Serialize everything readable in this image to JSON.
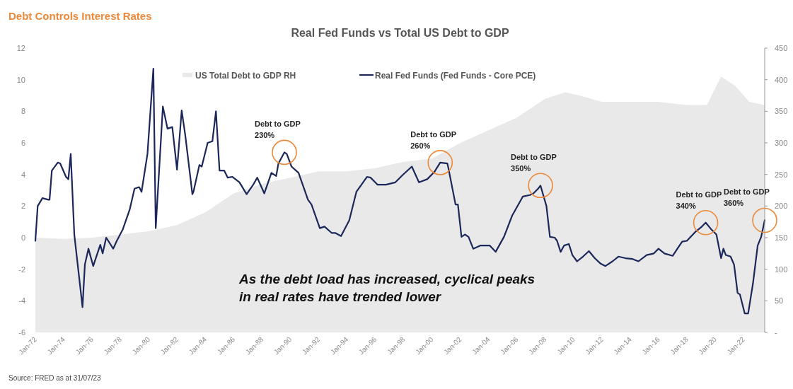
{
  "chart_data": {
    "type": "line",
    "title": "Debt Controls Interest Rates",
    "subtitle": "Real Fed Funds vs Total US Debt to GDP",
    "xlim": [
      "1972-01",
      "2023-07"
    ],
    "xticks": [
      {
        "value": "1972-01",
        "label": "Jan-72"
      },
      {
        "value": "1974-01",
        "label": "Jan-74"
      },
      {
        "value": "1976-01",
        "label": "Jan-76"
      },
      {
        "value": "1978-01",
        "label": "Jan-78"
      },
      {
        "value": "1980-01",
        "label": "Jan-80"
      },
      {
        "value": "1982-01",
        "label": "Jan-82"
      },
      {
        "value": "1984-01",
        "label": "Jan-84"
      },
      {
        "value": "1986-01",
        "label": "Jan-86"
      },
      {
        "value": "1988-01",
        "label": "Jan-88"
      },
      {
        "value": "1990-01",
        "label": "Jan-90"
      },
      {
        "value": "1992-01",
        "label": "Jan-92"
      },
      {
        "value": "1994-01",
        "label": "Jan-94"
      },
      {
        "value": "1996-01",
        "label": "Jan-96"
      },
      {
        "value": "1998-01",
        "label": "Jan-98"
      },
      {
        "value": "2000-01",
        "label": "Jan-00"
      },
      {
        "value": "2002-01",
        "label": "Jan-02"
      },
      {
        "value": "2004-01",
        "label": "Jan-04"
      },
      {
        "value": "2006-01",
        "label": "Jan-06"
      },
      {
        "value": "2008-01",
        "label": "Jan-08"
      },
      {
        "value": "2010-01",
        "label": "Jan-10"
      },
      {
        "value": "2012-01",
        "label": "Jan-12"
      },
      {
        "value": "2014-01",
        "label": "Jan-14"
      },
      {
        "value": "2016-01",
        "label": "Jan-16"
      },
      {
        "value": "2018-01",
        "label": "Jan-18"
      },
      {
        "value": "2020-01",
        "label": "Jan-20"
      },
      {
        "value": "2022-01",
        "label": "Jan-22"
      }
    ],
    "ylim": [
      -6,
      12
    ],
    "yticks": [
      -6,
      -4,
      -2,
      0,
      2,
      4,
      6,
      8,
      10,
      12
    ],
    "y2lim": [
      0,
      450
    ],
    "y2ticks": [
      {
        "value": 0,
        "label": "-"
      },
      50,
      100,
      150,
      200,
      250,
      300,
      350,
      400,
      450
    ],
    "legend": "top",
    "series": [
      {
        "name": "US Total Debt to GDP RH",
        "type": "area",
        "axis": "y2",
        "color": "#e9e9e9",
        "x": [
          "1972-01",
          "1974-01",
          "1976-01",
          "1978-01",
          "1980-01",
          "1982-01",
          "1984-01",
          "1986-01",
          "1988-01",
          "1990-01",
          "1992-01",
          "1994-01",
          "1996-01",
          "1998-01",
          "2000-01",
          "2002-01",
          "2004-01",
          "2006-01",
          "2008-01",
          "2009-06",
          "2010-06",
          "2012-01",
          "2014-01",
          "2016-01",
          "2018-01",
          "2019-06",
          "2020-06",
          "2021-06",
          "2022-06",
          "2023-07"
        ],
        "values": [
          150,
          148,
          150,
          155,
          160,
          170,
          190,
          220,
          235,
          245,
          255,
          255,
          260,
          270,
          275,
          300,
          320,
          340,
          370,
          380,
          375,
          365,
          365,
          365,
          360,
          360,
          405,
          390,
          365,
          360
        ]
      },
      {
        "name": "Real Fed Funds (Fed Funds - Core PCE)",
        "color": "#1c2859",
        "x": [
          "1972-01",
          "1972-03",
          "1972-07",
          "1972-12",
          "1973-01",
          "1973-03",
          "1973-08",
          "1973-10",
          "1974-03",
          "1974-05",
          "1974-07",
          "1974-10",
          "1975-05",
          "1975-07",
          "1975-10",
          "1976-02",
          "1976-08",
          "1976-10",
          "1977-01",
          "1977-07",
          "1977-10",
          "1978-03",
          "1978-09",
          "1979-01",
          "1979-05",
          "1979-07",
          "1979-12",
          "1980-05",
          "1980-07",
          "1981-01",
          "1981-05",
          "1981-09",
          "1982-01",
          "1982-05",
          "1982-08",
          "1983-02",
          "1983-03",
          "1983-08",
          "1983-10",
          "1984-03",
          "1984-07",
          "1984-10",
          "1985-01",
          "1985-05",
          "1985-08",
          "1985-12",
          "1986-06",
          "1986-12",
          "1987-06",
          "1987-09",
          "1988-03",
          "1988-09",
          "1989-01",
          "1989-03",
          "1989-08",
          "1989-10",
          "1990-02",
          "1990-08",
          "1991-04",
          "1991-07",
          "1992-02",
          "1992-06",
          "1992-12",
          "1993-03",
          "1993-08",
          "1994-03",
          "1994-09",
          "1995-06",
          "1995-09",
          "1996-03",
          "1996-10",
          "1997-06",
          "1997-12",
          "1998-08",
          "1999-02",
          "1999-09",
          "2000-03",
          "2000-08",
          "2001-02",
          "2001-03",
          "2001-09",
          "2001-11",
          "2002-02",
          "2002-05",
          "2002-08",
          "2002-12",
          "2003-06",
          "2004-02",
          "2004-07",
          "2005-02",
          "2005-09",
          "2006-06",
          "2006-12",
          "2007-03",
          "2007-07",
          "2007-09",
          "2008-02",
          "2008-05",
          "2008-09",
          "2008-11",
          "2009-02",
          "2009-05",
          "2009-09",
          "2009-12",
          "2010-04",
          "2010-09",
          "2011-02",
          "2011-07",
          "2011-12",
          "2012-04",
          "2012-10",
          "2013-03",
          "2013-09",
          "2014-03",
          "2014-08",
          "2015-03",
          "2015-09",
          "2016-01",
          "2016-06",
          "2017-01",
          "2017-05",
          "2017-09",
          "2018-01",
          "2018-08",
          "2019-01",
          "2019-05",
          "2019-10",
          "2020-02",
          "2020-06",
          "2020-08",
          "2020-10",
          "2021-02",
          "2021-05",
          "2021-08",
          "2021-10",
          "2022-02",
          "2022-05",
          "2022-09",
          "2023-01",
          "2023-04",
          "2023-07"
        ],
        "values": [
          -0.2,
          2.0,
          2.5,
          2.4,
          2.4,
          4.25,
          4.75,
          4.7,
          3.85,
          3.7,
          5.3,
          0.2,
          -4.4,
          -1.7,
          -0.7,
          -1.8,
          -0.45,
          -1.0,
          0.0,
          -0.7,
          -0.2,
          0.5,
          1.8,
          3.1,
          3.2,
          2.9,
          5.3,
          10.7,
          0.6,
          8.3,
          6.9,
          7.0,
          4.3,
          8.05,
          6.5,
          2.75,
          2.9,
          4.6,
          4.5,
          6.0,
          6.1,
          8.0,
          4.25,
          4.25,
          3.8,
          3.85,
          3.5,
          2.75,
          3.4,
          3.8,
          2.8,
          4.1,
          3.9,
          4.7,
          5.4,
          5.3,
          4.5,
          4.1,
          2.4,
          2.1,
          0.6,
          0.7,
          0.3,
          0.3,
          0.1,
          1.1,
          2.9,
          3.85,
          3.8,
          3.35,
          3.35,
          3.5,
          3.95,
          4.5,
          3.5,
          3.7,
          4.15,
          4.75,
          4.7,
          4.4,
          2.1,
          2.1,
          0.05,
          0.2,
          0.05,
          -0.7,
          -0.5,
          -0.5,
          -0.9,
          0.05,
          1.4,
          2.6,
          2.7,
          2.8,
          3.1,
          3.3,
          2.0,
          0.05,
          0.0,
          -0.2,
          -0.9,
          -0.5,
          -0.4,
          -1.1,
          -1.5,
          -1.2,
          -0.85,
          -1.3,
          -1.65,
          -1.8,
          -1.5,
          -1.2,
          -1.3,
          -1.35,
          -1.5,
          -1.1,
          -1.0,
          -0.7,
          -1.0,
          -1.15,
          -0.7,
          -0.25,
          -0.2,
          0.35,
          0.65,
          0.95,
          0.5,
          0.2,
          -1.3,
          -0.7,
          -1.1,
          -1.2,
          -1.7,
          -3.5,
          -3.6,
          -4.8,
          -4.8,
          -2.9,
          -0.5,
          0.05,
          1.1
        ]
      }
    ],
    "annotations": [
      {
        "text": "Debt to GDP\n230%",
        "x": "1989-08",
        "y": 5.4
      },
      {
        "text": "Debt to GDP\n260%",
        "x": "2000-08",
        "y": 4.75
      },
      {
        "text": "Debt to GDP\n350%",
        "x": "2007-09",
        "y": 3.3
      },
      {
        "text": "Debt to GDP\n340%",
        "x": "2019-05",
        "y": 0.95
      },
      {
        "text": "Debt to GDP\n360%",
        "x": "2023-07",
        "y": 1.1
      },
      "As the debt load has increased, cyclical peaks\nin real rates have trended lower",
      "Source: FRED as at 31/07/23"
    ]
  }
}
